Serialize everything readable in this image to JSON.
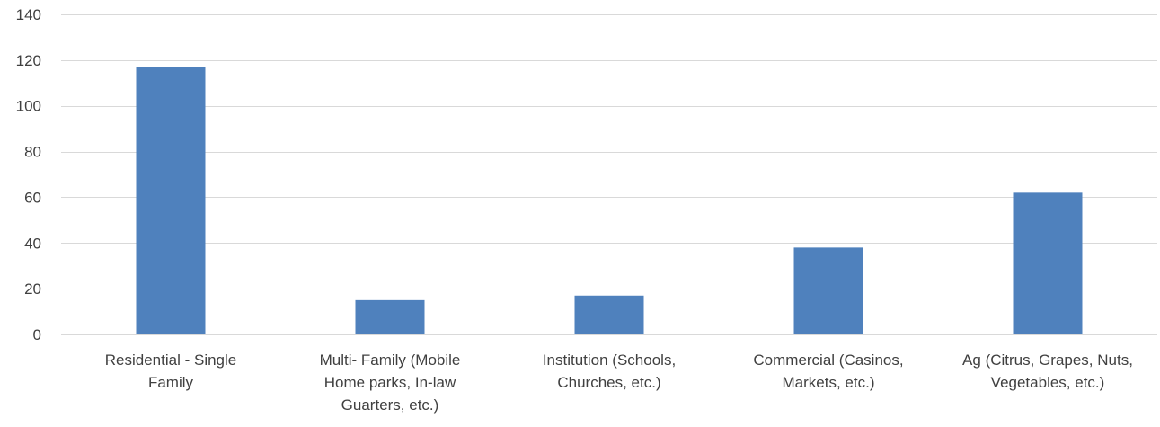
{
  "chart_data": {
    "type": "bar",
    "title": "",
    "xlabel": "",
    "ylabel": "",
    "categories": [
      [
        "Residential - Single",
        "Family"
      ],
      [
        "Multi- Family (Mobile",
        "Home parks, In-law",
        "Guarters, etc.)"
      ],
      [
        "Institution (Schools,",
        "Churches, etc.)"
      ],
      [
        "Commercial (Casinos,",
        "Markets, etc.)"
      ],
      [
        "Ag (Citrus, Grapes, Nuts,",
        "Vegetables, etc.)"
      ]
    ],
    "values": [
      117,
      15,
      17,
      38,
      62
    ],
    "ylim": [
      0,
      140
    ],
    "yticks": [
      0,
      20,
      40,
      60,
      80,
      100,
      120,
      140
    ],
    "grid": true,
    "legend": "none",
    "bar_color": "#4f81bd",
    "grid_color": "#d9d9d9",
    "text_color": "#404040"
  }
}
